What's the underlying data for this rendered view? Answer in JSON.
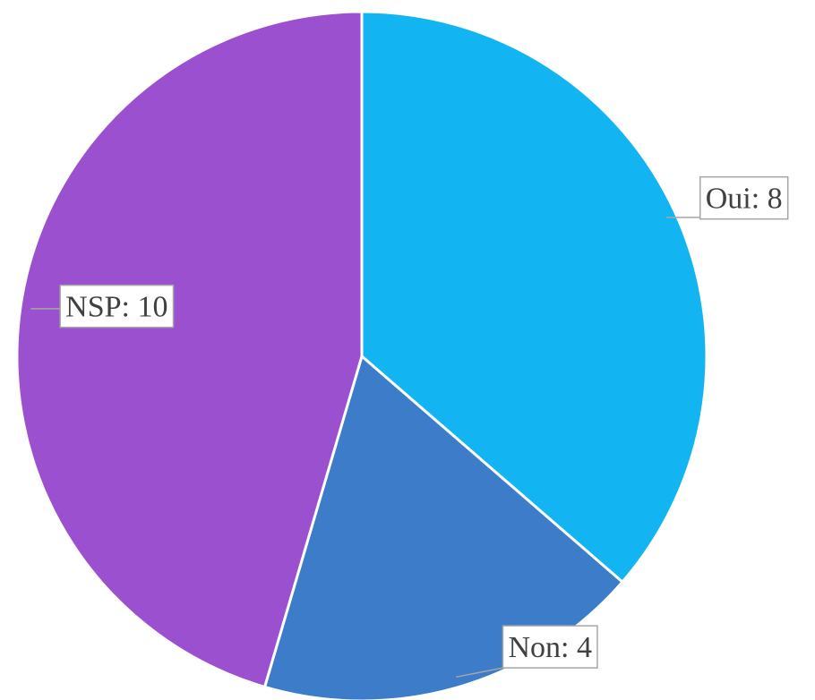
{
  "chart_data": {
    "type": "pie",
    "categories": [
      "Oui",
      "Non",
      "NSP"
    ],
    "values": [
      8,
      4,
      10
    ],
    "value_labels": [
      "Oui: 8",
      "Non: 4",
      "NSP: 10"
    ],
    "colors": [
      "#12b5f2",
      "#3d7cc9",
      "#9b51cf"
    ]
  }
}
